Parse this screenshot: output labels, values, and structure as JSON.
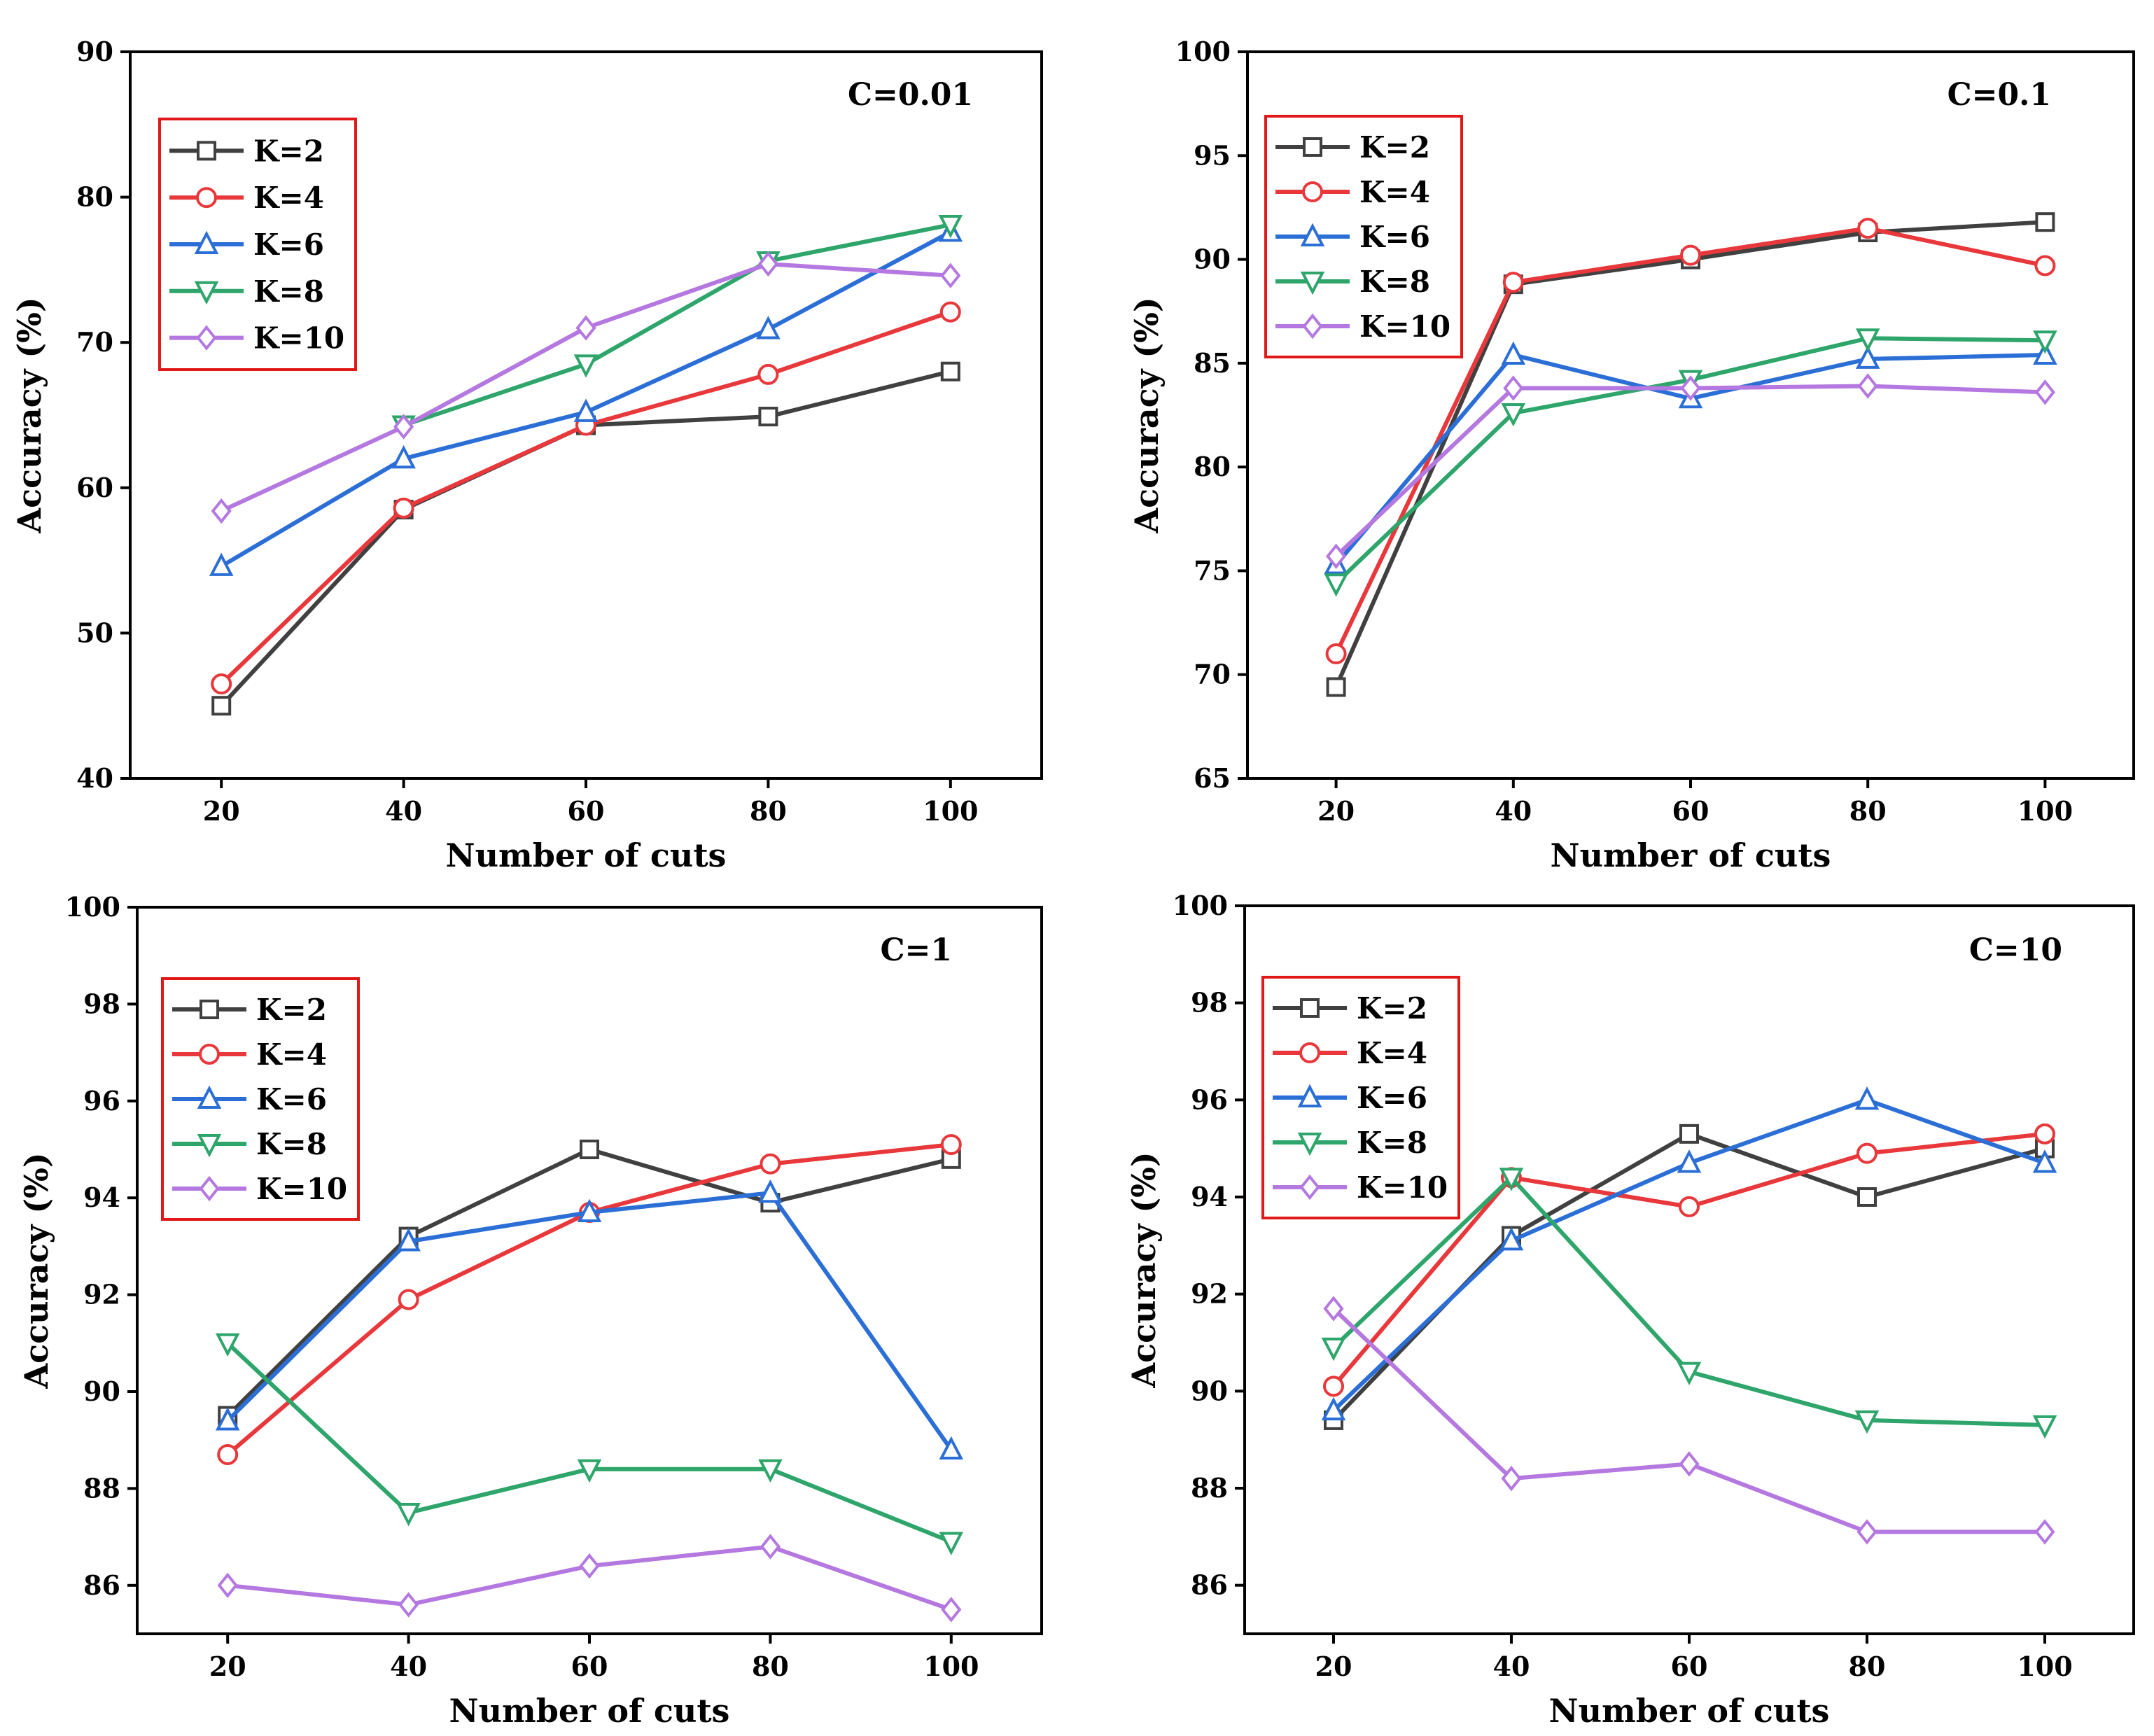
{
  "chart_data": [
    {
      "type": "line",
      "title": "C=0.01",
      "xlabel": "Number of cuts",
      "ylabel": "Accuracy (%)",
      "x": [
        20,
        40,
        60,
        80,
        100
      ],
      "xlim": [
        10,
        110
      ],
      "ylim": [
        40,
        90
      ],
      "yticks": [
        40,
        50,
        60,
        70,
        80,
        90
      ],
      "xticks": [
        20,
        40,
        60,
        80,
        100
      ],
      "legend_position": "upper-left",
      "series": [
        {
          "name": "K=2",
          "color": "#404040",
          "marker": "square",
          "values": [
            45.0,
            58.5,
            64.3,
            64.9,
            68.0
          ]
        },
        {
          "name": "K=4",
          "color": "#e8383b",
          "marker": "circle",
          "values": [
            46.5,
            58.6,
            64.3,
            67.8,
            72.1
          ]
        },
        {
          "name": "K=6",
          "color": "#2b6fd6",
          "marker": "triangle-up",
          "values": [
            54.6,
            62.0,
            65.2,
            70.9,
            77.6
          ]
        },
        {
          "name": "K=8",
          "color": "#2ea56a",
          "marker": "triangle-down",
          "values": [
            null,
            64.3,
            68.5,
            75.6,
            78.1
          ]
        },
        {
          "name": "K=10",
          "color": "#b478e0",
          "marker": "diamond",
          "values": [
            58.4,
            64.2,
            71.0,
            75.4,
            74.6
          ]
        }
      ]
    },
    {
      "type": "line",
      "title": "C=0.1",
      "xlabel": "Number of cuts",
      "ylabel": "Accuracy (%)",
      "x": [
        20,
        40,
        60,
        80,
        100
      ],
      "xlim": [
        10,
        110
      ],
      "ylim": [
        65,
        100
      ],
      "yticks": [
        65,
        70,
        75,
        80,
        85,
        90,
        95,
        100
      ],
      "xticks": [
        20,
        40,
        60,
        80,
        100
      ],
      "legend_position": "upper-left",
      "series": [
        {
          "name": "K=2",
          "color": "#404040",
          "marker": "square",
          "values": [
            69.4,
            88.8,
            90.0,
            91.3,
            91.8
          ]
        },
        {
          "name": "K=4",
          "color": "#e8383b",
          "marker": "circle",
          "values": [
            71.0,
            88.9,
            90.2,
            91.5,
            89.7
          ]
        },
        {
          "name": "K=6",
          "color": "#2b6fd6",
          "marker": "triangle-up",
          "values": [
            75.3,
            85.4,
            83.3,
            85.2,
            85.4
          ]
        },
        {
          "name": "K=8",
          "color": "#2ea56a",
          "marker": "triangle-down",
          "values": [
            74.4,
            82.6,
            84.2,
            86.2,
            86.1
          ]
        },
        {
          "name": "K=10",
          "color": "#b478e0",
          "marker": "diamond",
          "values": [
            75.7,
            83.8,
            83.8,
            83.9,
            83.6
          ]
        }
      ]
    },
    {
      "type": "line",
      "title": "C=1",
      "xlabel": "Number of cuts",
      "ylabel": "Accuracy (%)",
      "x": [
        20,
        40,
        60,
        80,
        100
      ],
      "xlim": [
        10,
        110
      ],
      "ylim": [
        85,
        100
      ],
      "yticks": [
        86,
        88,
        90,
        92,
        94,
        96,
        98,
        100
      ],
      "xticks": [
        20,
        40,
        60,
        80,
        100
      ],
      "legend_position": "upper-left",
      "series": [
        {
          "name": "K=2",
          "color": "#404040",
          "marker": "square",
          "values": [
            89.5,
            93.2,
            95.0,
            93.9,
            94.8
          ]
        },
        {
          "name": "K=4",
          "color": "#e8383b",
          "marker": "circle",
          "values": [
            88.7,
            91.9,
            93.7,
            94.7,
            95.1
          ]
        },
        {
          "name": "K=6",
          "color": "#2b6fd6",
          "marker": "triangle-up",
          "values": [
            89.4,
            93.1,
            93.7,
            94.1,
            88.8
          ]
        },
        {
          "name": "K=8",
          "color": "#2ea56a",
          "marker": "triangle-down",
          "values": [
            91.0,
            87.5,
            88.4,
            88.4,
            86.9
          ]
        },
        {
          "name": "K=10",
          "color": "#b478e0",
          "marker": "diamond",
          "values": [
            86.0,
            85.6,
            86.4,
            86.8,
            85.5
          ]
        }
      ]
    },
    {
      "type": "line",
      "title": "C=10",
      "xlabel": "Number of cuts",
      "ylabel": "Accuracy (%)",
      "x": [
        20,
        40,
        60,
        80,
        100
      ],
      "xlim": [
        10,
        110
      ],
      "ylim": [
        85,
        100
      ],
      "yticks": [
        86,
        88,
        90,
        92,
        94,
        96,
        98,
        100
      ],
      "xticks": [
        20,
        40,
        60,
        80,
        100
      ],
      "legend_position": "upper-left",
      "series": [
        {
          "name": "K=2",
          "color": "#404040",
          "marker": "square",
          "values": [
            89.4,
            93.2,
            95.3,
            94.0,
            95.0
          ]
        },
        {
          "name": "K=4",
          "color": "#e8383b",
          "marker": "circle",
          "values": [
            90.1,
            94.4,
            93.8,
            94.9,
            95.3
          ]
        },
        {
          "name": "K=6",
          "color": "#2b6fd6",
          "marker": "triangle-up",
          "values": [
            89.6,
            93.1,
            94.7,
            96.0,
            94.7
          ]
        },
        {
          "name": "K=8",
          "color": "#2ea56a",
          "marker": "triangle-down",
          "values": [
            90.9,
            94.4,
            90.4,
            89.4,
            89.3
          ]
        },
        {
          "name": "K=10",
          "color": "#b478e0",
          "marker": "diamond",
          "values": [
            91.7,
            88.2,
            88.5,
            87.1,
            87.1
          ]
        }
      ]
    }
  ]
}
